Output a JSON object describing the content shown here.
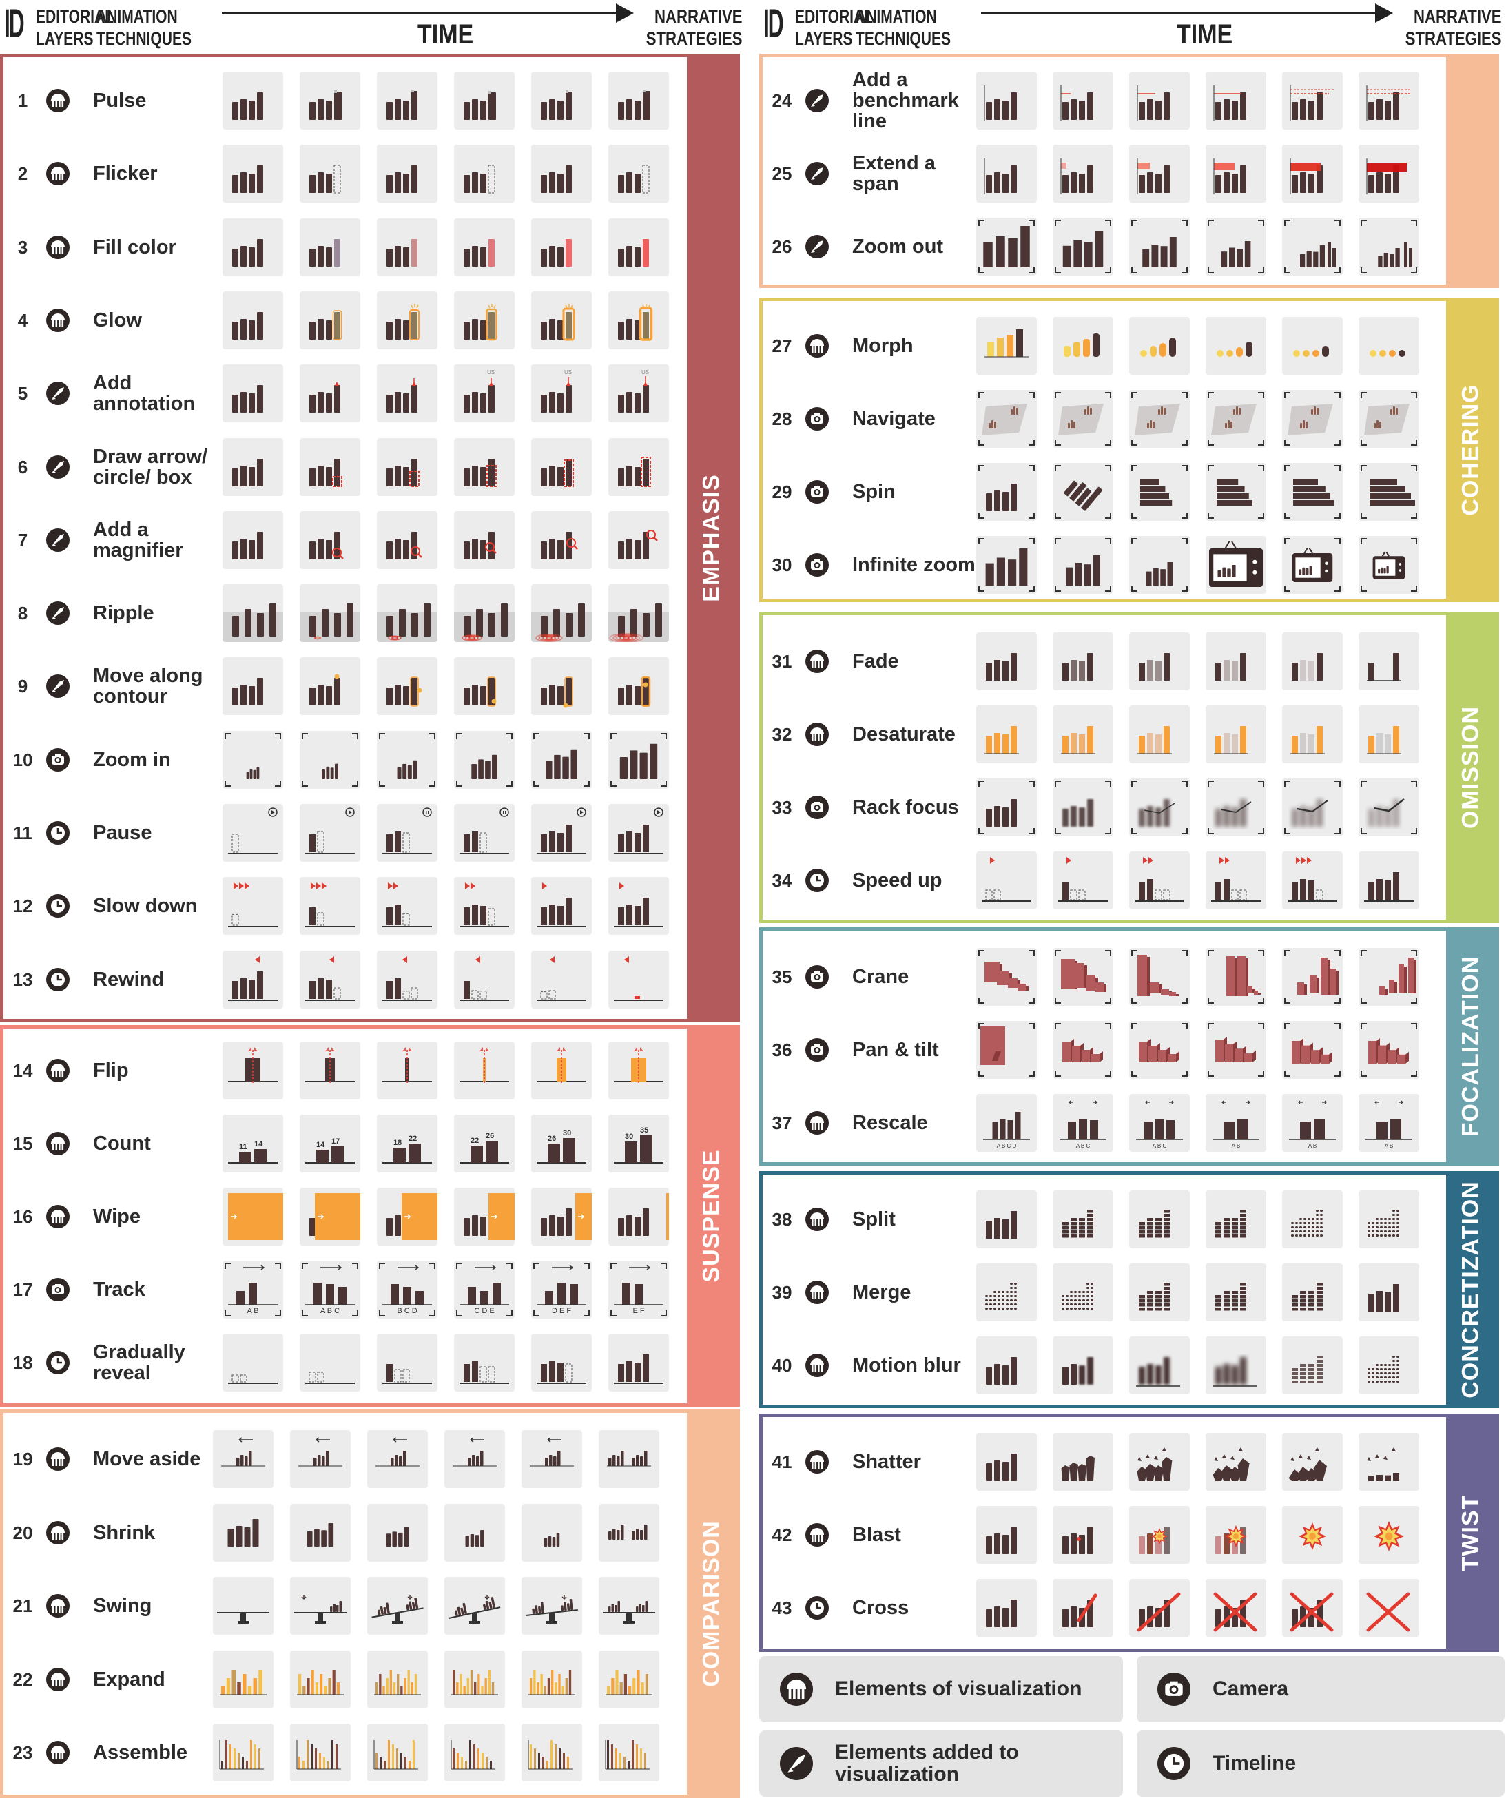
{
  "header": {
    "id": "ID",
    "editorial_layers": [
      "EDITORIAL",
      "LAYERS"
    ],
    "animation_techniques": [
      "ANIMATION",
      "TECHNIQUES"
    ],
    "time": "TIME",
    "narrative_strategies": [
      "NARRATIVE",
      "STRATEGIES"
    ]
  },
  "colors": {
    "emphasis": "#b35a5c",
    "suspense": "#f0857a",
    "comparison": "#f6bb97",
    "cohering": "#e2c95c",
    "omission": "#bcd06a",
    "focalization": "#6da3ad",
    "concretization": "#2e6b86",
    "twist": "#6a6494",
    "bar": "#4a3434",
    "thumb_bg": "#ececec",
    "highlight_red": "#e23a2e",
    "highlight_orange": "#f6a13a"
  },
  "sections": [
    {
      "name": "EMPHASIS",
      "rows": [
        {
          "id": "1",
          "layer": "elements",
          "label": "Pulse",
          "thumb": "pulse"
        },
        {
          "id": "2",
          "layer": "elements",
          "label": "Flicker",
          "thumb": "flicker"
        },
        {
          "id": "3",
          "layer": "elements",
          "label": "Fill color",
          "thumb": "fill"
        },
        {
          "id": "4",
          "layer": "elements",
          "label": "Glow",
          "thumb": "glow"
        },
        {
          "id": "5",
          "layer": "added",
          "label": "Add annotation",
          "thumb": "annot"
        },
        {
          "id": "6",
          "layer": "added",
          "label": "Draw arrow/ circle/ box",
          "thumb": "box"
        },
        {
          "id": "7",
          "layer": "added",
          "label": "Add a magnifier",
          "thumb": "mag"
        },
        {
          "id": "8",
          "layer": "added",
          "label": "Ripple",
          "thumb": "ripple"
        },
        {
          "id": "9",
          "layer": "added",
          "label": "Move along contour",
          "thumb": "contour"
        },
        {
          "id": "10",
          "layer": "camera",
          "label": "Zoom in",
          "thumb": "zoomin"
        },
        {
          "id": "11",
          "layer": "timeline",
          "label": "Pause",
          "thumb": "pause"
        },
        {
          "id": "12",
          "layer": "timeline",
          "label": "Slow down",
          "thumb": "slow"
        },
        {
          "id": "13",
          "layer": "timeline",
          "label": "Rewind",
          "thumb": "rewind"
        }
      ]
    },
    {
      "name": "SUSPENSE",
      "rows": [
        {
          "id": "14",
          "layer": "elements",
          "label": "Flip",
          "thumb": "flip"
        },
        {
          "id": "15",
          "layer": "elements",
          "label": "Count",
          "thumb": "count",
          "counts": [
            [
              "11",
              "14"
            ],
            [
              "14",
              "17"
            ],
            [
              "18",
              "22"
            ],
            [
              "22",
              "26"
            ],
            [
              "26",
              "30"
            ],
            [
              "30",
              "35"
            ]
          ]
        },
        {
          "id": "16",
          "layer": "elements",
          "label": "Wipe",
          "thumb": "wipe"
        },
        {
          "id": "17",
          "layer": "camera",
          "label": "Track",
          "thumb": "track",
          "letters": [
            "A B",
            "A B C",
            "B C D",
            "C D E",
            "D E F",
            "E F"
          ]
        },
        {
          "id": "18",
          "layer": "timeline",
          "label": "Gradually reveal",
          "thumb": "reveal"
        }
      ]
    },
    {
      "name": "COMPARISON",
      "rows": [
        {
          "id": "19",
          "layer": "elements",
          "label": "Move aside",
          "thumb": "aside"
        },
        {
          "id": "20",
          "layer": "elements",
          "label": "Shrink",
          "thumb": "shrink"
        },
        {
          "id": "21",
          "layer": "elements",
          "label": "Swing",
          "thumb": "swing"
        },
        {
          "id": "22",
          "layer": "elements",
          "label": "Expand",
          "thumb": "expand"
        },
        {
          "id": "23",
          "layer": "elements",
          "label": "Assemble",
          "thumb": "assemble"
        }
      ]
    },
    {
      "name": "",
      "rows": [
        {
          "id": "24",
          "layer": "added",
          "label": "Add a benchmark line",
          "thumb": "bench"
        },
        {
          "id": "25",
          "layer": "added",
          "label": "Extend a span",
          "thumb": "span"
        },
        {
          "id": "26",
          "layer": "added",
          "label": "Zoom out",
          "thumb": "zoomout"
        }
      ]
    },
    {
      "name": "COHERING",
      "rows": [
        {
          "id": "27",
          "layer": "elements",
          "label": "Morph",
          "thumb": "morph"
        },
        {
          "id": "28",
          "layer": "camera",
          "label": "Navigate",
          "thumb": "navigate"
        },
        {
          "id": "29",
          "layer": "camera",
          "label": "Spin",
          "thumb": "spin"
        },
        {
          "id": "30",
          "layer": "camera",
          "label": "Infinite zoom",
          "thumb": "infzoom"
        }
      ]
    },
    {
      "name": "OMISSION",
      "rows": [
        {
          "id": "31",
          "layer": "elements",
          "label": "Fade",
          "thumb": "fade"
        },
        {
          "id": "32",
          "layer": "elements",
          "label": "Desaturate",
          "thumb": "desat"
        },
        {
          "id": "33",
          "layer": "camera",
          "label": "Rack focus",
          "thumb": "rack"
        },
        {
          "id": "34",
          "layer": "timeline",
          "label": "Speed up",
          "thumb": "speed"
        }
      ]
    },
    {
      "name": "FOCALIZATION",
      "rows": [
        {
          "id": "35",
          "layer": "camera",
          "label": "Crane",
          "thumb": "crane"
        },
        {
          "id": "36",
          "layer": "camera",
          "label": "Pan & tilt",
          "thumb": "pantilt"
        },
        {
          "id": "37",
          "layer": "elements",
          "label": "Rescale",
          "thumb": "rescale",
          "letters": [
            "A B C D",
            "A B C",
            "A B C",
            "A B",
            "A B",
            "A B"
          ]
        }
      ]
    },
    {
      "name": "CONCRETIZATION",
      "rows": [
        {
          "id": "38",
          "layer": "elements",
          "label": "Split",
          "thumb": "split"
        },
        {
          "id": "39",
          "layer": "elements",
          "label": "Merge",
          "thumb": "merge"
        },
        {
          "id": "40",
          "layer": "elements",
          "label": "Motion blur",
          "thumb": "mblur"
        }
      ]
    },
    {
      "name": "TWIST",
      "rows": [
        {
          "id": "41",
          "layer": "elements",
          "label": "Shatter",
          "thumb": "shatter"
        },
        {
          "id": "42",
          "layer": "elements",
          "label": "Blast",
          "thumb": "blast"
        },
        {
          "id": "43",
          "layer": "timeline",
          "label": "Cross",
          "thumb": "cross"
        }
      ]
    }
  ],
  "annotations": {
    "us_label": "US"
  },
  "legend": [
    {
      "icon": "elements",
      "label": "Elements of visualization"
    },
    {
      "icon": "camera",
      "label": "Camera"
    },
    {
      "icon": "added",
      "label": "Elements added to visualization"
    },
    {
      "icon": "timeline",
      "label": "Timeline"
    }
  ]
}
